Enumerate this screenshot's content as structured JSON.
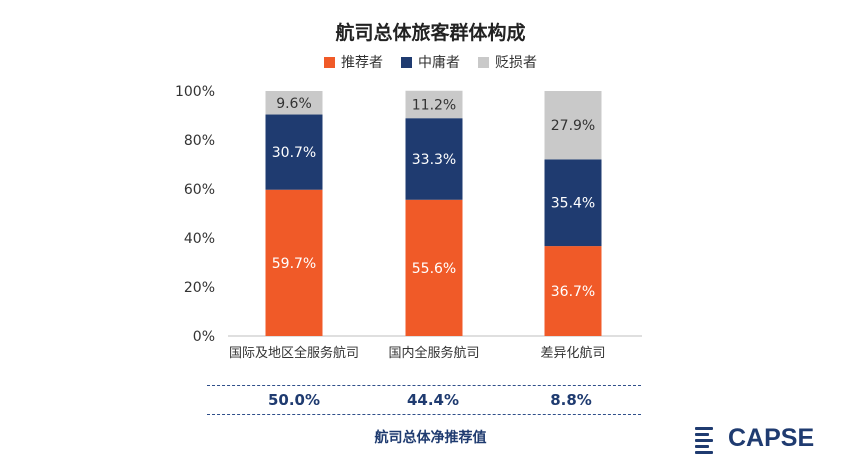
{
  "chart_data": {
    "type": "bar",
    "stacked": true,
    "title": "航司总体旅客群体构成",
    "categories": [
      "国际及地区全服务航司",
      "国内全服务航司",
      "差异化航司"
    ],
    "series": [
      {
        "name": "推荐者",
        "color": "#f05a28",
        "values": [
          59.7,
          55.6,
          36.7
        ],
        "labels": [
          "59.7%",
          "55.6%",
          "36.7%"
        ]
      },
      {
        "name": "中庸者",
        "color": "#1f3b70",
        "values": [
          30.7,
          33.3,
          35.4
        ],
        "labels": [
          "30.7%",
          "33.3%",
          "35.4%"
        ]
      },
      {
        "name": "贬损者",
        "color": "#c9c9c9",
        "values": [
          9.6,
          11.2,
          27.9
        ],
        "labels": [
          "9.6%",
          "11.2%",
          "27.9%"
        ]
      }
    ],
    "ylim": [
      0,
      100
    ],
    "yticks": [
      "0%",
      "20%",
      "40%",
      "60%",
      "80%",
      "100%"
    ],
    "legend_position": "top-center",
    "grid": false
  },
  "nps": {
    "values": [
      "50.0%",
      "44.4%",
      "8.8%"
    ],
    "label": "航司总体净推荐值"
  },
  "logo": {
    "text": "CAPSE",
    "color": "#1f3b70"
  }
}
